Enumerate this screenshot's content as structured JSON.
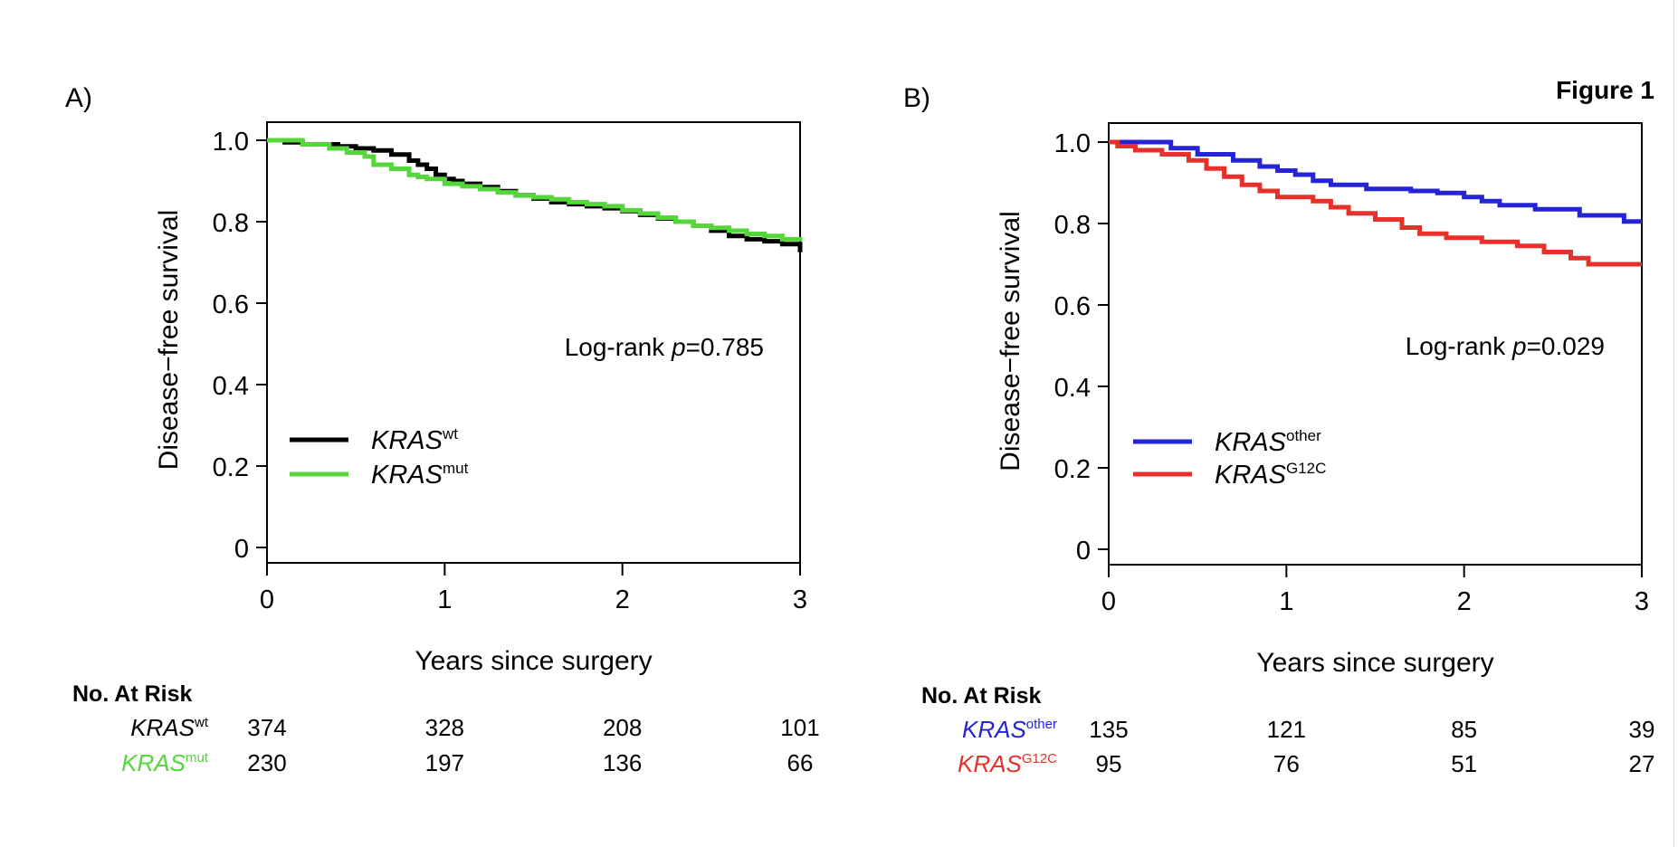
{
  "figure_label": "Figure 1",
  "chart_data": [
    {
      "panel_label": "A)",
      "type": "line",
      "xlabel": "Years since surgery",
      "ylabel": "Disease−free survival",
      "xlim": [
        0,
        3
      ],
      "ylim": [
        0,
        1
      ],
      "x_ticks": [
        "0",
        "1",
        "2",
        "3"
      ],
      "y_ticks": [
        "0",
        "0.2",
        "0.4",
        "0.6",
        "0.8",
        "1.0"
      ],
      "annotation": {
        "prefix": "Log-rank ",
        "italic": "p",
        "suffix": "=0.785"
      },
      "legend_position": "bottom-left",
      "series": [
        {
          "name": "KRAS",
          "superscript": "wt",
          "color": "#000000",
          "x": [
            0,
            0.1,
            0.2,
            0.3,
            0.4,
            0.5,
            0.6,
            0.7,
            0.8,
            0.85,
            0.9,
            0.95,
            1.0,
            1.05,
            1.1,
            1.2,
            1.3,
            1.4,
            1.5,
            1.6,
            1.7,
            1.8,
            1.9,
            2.0,
            2.1,
            2.2,
            2.3,
            2.4,
            2.5,
            2.6,
            2.7,
            2.8,
            2.9,
            3.0
          ],
          "y": [
            1.0,
            0.995,
            0.99,
            0.99,
            0.985,
            0.98,
            0.975,
            0.965,
            0.95,
            0.94,
            0.93,
            0.915,
            0.905,
            0.9,
            0.893,
            0.885,
            0.875,
            0.865,
            0.857,
            0.848,
            0.843,
            0.838,
            0.833,
            0.826,
            0.817,
            0.808,
            0.8,
            0.79,
            0.778,
            0.765,
            0.757,
            0.752,
            0.745,
            0.725
          ]
        },
        {
          "name": "KRAS",
          "superscript": "mut",
          "color": "#55d63a",
          "x": [
            0,
            0.2,
            0.35,
            0.45,
            0.55,
            0.6,
            0.7,
            0.8,
            0.85,
            0.9,
            1.0,
            1.1,
            1.2,
            1.3,
            1.4,
            1.5,
            1.6,
            1.7,
            1.8,
            1.9,
            2.0,
            2.1,
            2.2,
            2.3,
            2.4,
            2.5,
            2.6,
            2.7,
            2.8,
            2.9,
            3.0
          ],
          "y": [
            1.0,
            0.99,
            0.98,
            0.97,
            0.96,
            0.94,
            0.93,
            0.915,
            0.91,
            0.905,
            0.893,
            0.887,
            0.88,
            0.872,
            0.865,
            0.86,
            0.855,
            0.848,
            0.843,
            0.838,
            0.828,
            0.82,
            0.81,
            0.8,
            0.79,
            0.785,
            0.778,
            0.77,
            0.765,
            0.757,
            0.752
          ]
        }
      ],
      "risk_table": {
        "header": "No. At Risk",
        "rows": [
          {
            "name": "KRAS",
            "superscript": "wt",
            "color": "#000000",
            "counts": [
              "374",
              "328",
              "208",
              "101"
            ]
          },
          {
            "name": "KRAS",
            "superscript": "mut",
            "color": "#55d63a",
            "counts": [
              "230",
              "197",
              "136",
              "66"
            ]
          }
        ]
      }
    },
    {
      "panel_label": "B)",
      "type": "line",
      "xlabel": "Years since surgery",
      "ylabel": "Disease−free survival",
      "xlim": [
        0,
        3
      ],
      "ylim": [
        0,
        1
      ],
      "x_ticks": [
        "0",
        "1",
        "2",
        "3"
      ],
      "y_ticks": [
        "0",
        "0.2",
        "0.4",
        "0.6",
        "0.8",
        "1.0"
      ],
      "annotation": {
        "prefix": "Log-rank ",
        "italic": "p",
        "suffix": "=0.029"
      },
      "legend_position": "bottom-left",
      "series": [
        {
          "name": "KRAS",
          "superscript": "other",
          "color": "#2424d6",
          "x": [
            0,
            0.1,
            0.35,
            0.5,
            0.7,
            0.85,
            0.95,
            1.05,
            1.15,
            1.25,
            1.45,
            1.7,
            1.85,
            2.0,
            2.1,
            2.2,
            2.4,
            2.65,
            2.9,
            3.0
          ],
          "y": [
            1.0,
            1.0,
            0.985,
            0.97,
            0.955,
            0.94,
            0.93,
            0.92,
            0.905,
            0.895,
            0.885,
            0.88,
            0.875,
            0.865,
            0.855,
            0.845,
            0.835,
            0.82,
            0.805,
            0.805
          ]
        },
        {
          "name": "KRAS",
          "superscript": "G12C",
          "color": "#e8302a",
          "x": [
            0,
            0.05,
            0.15,
            0.3,
            0.45,
            0.55,
            0.65,
            0.75,
            0.85,
            0.95,
            1.15,
            1.25,
            1.35,
            1.5,
            1.65,
            1.75,
            1.9,
            2.1,
            2.3,
            2.45,
            2.6,
            2.7,
            3.0
          ],
          "y": [
            1.0,
            0.99,
            0.98,
            0.97,
            0.955,
            0.935,
            0.915,
            0.895,
            0.88,
            0.865,
            0.855,
            0.84,
            0.825,
            0.81,
            0.79,
            0.775,
            0.765,
            0.755,
            0.745,
            0.73,
            0.715,
            0.7,
            0.7
          ]
        }
      ],
      "risk_table": {
        "header": "No. At Risk",
        "rows": [
          {
            "name": "KRAS",
            "superscript": "other",
            "color": "#2424d6",
            "counts": [
              "135",
              "121",
              "85",
              "39"
            ]
          },
          {
            "name": "KRAS",
            "superscript": "G12C",
            "color": "#e8302a",
            "counts": [
              "95",
              "76",
              "51",
              "27"
            ]
          }
        ]
      }
    }
  ]
}
